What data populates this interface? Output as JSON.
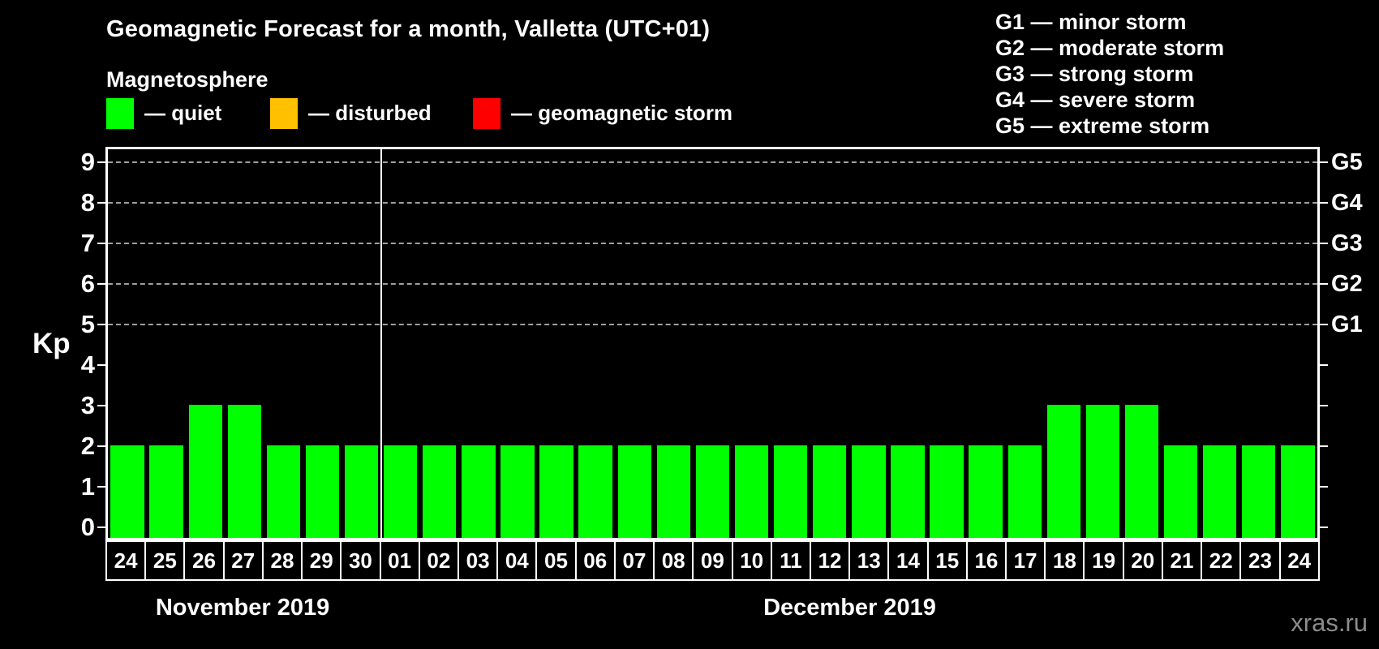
{
  "title": "Geomagnetic Forecast for a month, Valletta (UTC+01)",
  "subtitle": "Magnetosphere",
  "watermark": "xras.ru",
  "colors": {
    "background": "#000000",
    "axis": "#ffffff",
    "grid": "#a0a0a0",
    "quiet": "#00ff00",
    "disturbed": "#ffc000",
    "storm": "#ff0000",
    "watermark": "#8c8c8c"
  },
  "activity_legend": [
    {
      "name": "quiet",
      "label": "— quiet",
      "color": "#00ff00"
    },
    {
      "name": "disturbed",
      "label": "— disturbed",
      "color": "#ffc000"
    },
    {
      "name": "storm",
      "label": "— geomagnetic storm",
      "color": "#ff0000"
    }
  ],
  "storm_scale_legend": [
    "G1 — minor storm",
    "G2 — moderate storm",
    "G3 — strong storm",
    "G4 — severe storm",
    "G5 — extreme storm"
  ],
  "chart_data": {
    "type": "bar",
    "ylabel": "Kp",
    "ylim": [
      0,
      9
    ],
    "y_ticks": [
      0,
      1,
      2,
      3,
      4,
      5,
      6,
      7,
      8,
      9
    ],
    "gridlines_at_kp": [
      5,
      6,
      7,
      8,
      9
    ],
    "grid": "dashed",
    "legend_position": "top",
    "right_axis": [
      {
        "label": "G1",
        "kp": 5
      },
      {
        "label": "G2",
        "kp": 6
      },
      {
        "label": "G3",
        "kp": 7
      },
      {
        "label": "G4",
        "kp": 8
      },
      {
        "label": "G5",
        "kp": 9
      }
    ],
    "bar_color": "#00ff00",
    "months": [
      {
        "label": "November 2019",
        "days": [
          "24",
          "25",
          "26",
          "27",
          "28",
          "29",
          "30"
        ],
        "values": [
          2,
          2,
          3,
          3,
          2,
          2,
          2
        ]
      },
      {
        "label": "December 2019",
        "days": [
          "01",
          "02",
          "03",
          "04",
          "05",
          "06",
          "07",
          "08",
          "09",
          "10",
          "11",
          "12",
          "13",
          "14",
          "15",
          "16",
          "17",
          "18",
          "19",
          "20",
          "21",
          "22",
          "23",
          "24"
        ],
        "values": [
          2,
          2,
          2,
          2,
          2,
          2,
          2,
          2,
          2,
          2,
          2,
          2,
          2,
          2,
          2,
          2,
          2,
          3,
          3,
          3,
          2,
          2,
          2,
          2
        ]
      }
    ]
  }
}
